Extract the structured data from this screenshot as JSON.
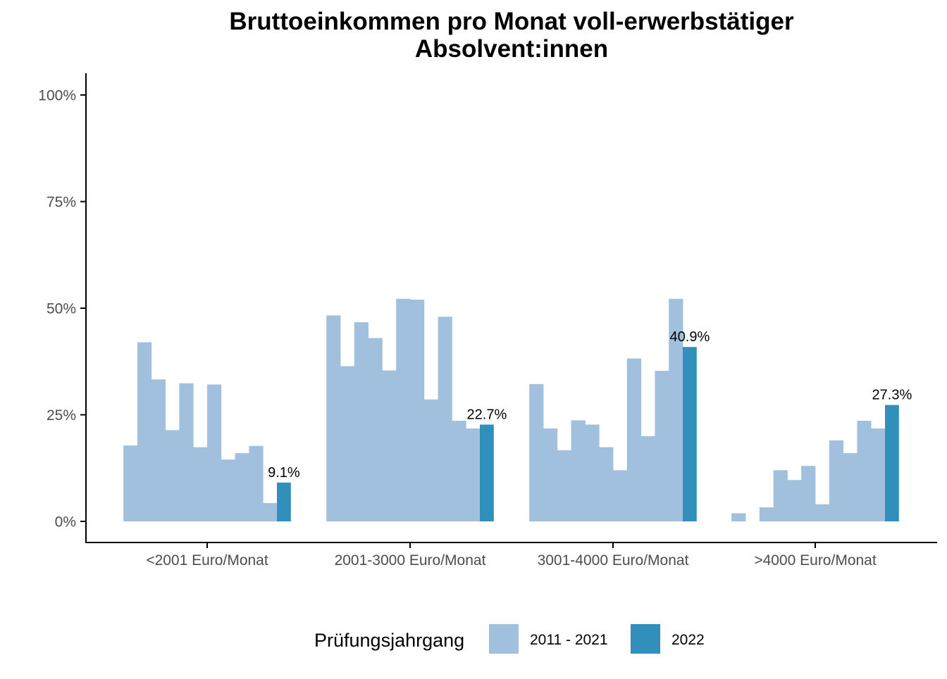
{
  "chart_data": {
    "type": "bar",
    "title": [
      "Bruttoeinkommen pro Monat voll-erwerbstätiger",
      "Absolvent:innen"
    ],
    "xlabel": "",
    "ylabel": "",
    "ylim": [
      0,
      1.05
    ],
    "y_ticks": [
      {
        "value": 0,
        "label": "0%"
      },
      {
        "value": 0.25,
        "label": "25%"
      },
      {
        "value": 0.5,
        "label": "50%"
      },
      {
        "value": 0.75,
        "label": "75%"
      },
      {
        "value": 1.0,
        "label": "100%"
      }
    ],
    "grid": false,
    "categories": [
      "<2001 Euro/Monat",
      "2001-3000 Euro/Monat",
      "3001-4000 Euro/Monat",
      ">4000 Euro/Monat"
    ],
    "colors": {
      "historic": "#a0c0dd",
      "current": "#318fbb",
      "axis": "#000000",
      "tick_text": "#4d4d4d"
    },
    "legend": {
      "title": "Prüfungsjahrgang",
      "position": "bottom",
      "items": [
        {
          "label": "2011 - 2021",
          "color": "#a0c0dd"
        },
        {
          "label": "2022",
          "color": "#318fbb"
        }
      ]
    },
    "series": [
      {
        "name": "2011 - 2021",
        "values_by_category": [
          [
            0.178,
            0.42,
            0.333,
            0.214,
            0.324,
            0.174,
            0.321,
            0.145,
            0.16,
            0.177,
            0.043
          ],
          [
            0.483,
            0.364,
            0.467,
            0.43,
            0.354,
            0.522,
            0.52,
            0.286,
            0.48,
            0.236,
            0.218
          ],
          [
            0.322,
            0.218,
            0.167,
            0.237,
            0.227,
            0.174,
            0.12,
            0.382,
            0.2,
            0.353,
            0.522
          ],
          [
            0.019,
            0.0,
            0.033,
            0.12,
            0.097,
            0.13,
            0.04,
            0.19,
            0.16,
            0.236,
            0.218
          ]
        ]
      },
      {
        "name": "2022",
        "values": [
          0.091,
          0.227,
          0.409,
          0.273
        ],
        "labels": [
          "9.1%",
          "22.7%",
          "40.9%",
          "27.3%"
        ]
      }
    ]
  }
}
